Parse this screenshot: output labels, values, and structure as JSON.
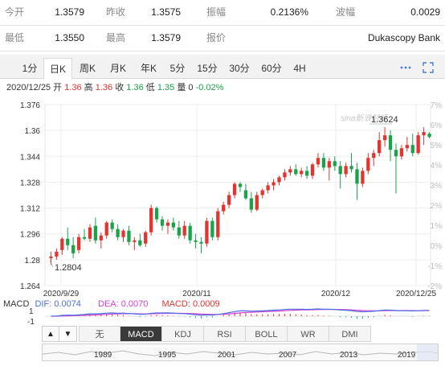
{
  "quote": {
    "row1": [
      {
        "label": "今开",
        "value": "1.3579"
      },
      {
        "label": "昨收",
        "value": "1.3575"
      },
      {
        "label": "振幅",
        "value": "0.2136%"
      },
      {
        "label": "波幅",
        "value": "0.0029"
      }
    ],
    "row2": [
      {
        "label": "最低",
        "value": "1.3550"
      },
      {
        "label": "最高",
        "value": "1.3579"
      },
      {
        "label": "报价",
        "value": "Dukascopy Bank"
      }
    ]
  },
  "tabs": [
    "1分",
    "日K",
    "周K",
    "月K",
    "年K",
    "5分",
    "15分",
    "30分",
    "60分",
    "4H"
  ],
  "active_tab": "日K",
  "ohlc": {
    "date": "2020/12/25",
    "open_label": "开",
    "open": "1.36",
    "high_label": "高",
    "high": "1.36",
    "close_label": "收",
    "close": "1.36",
    "low_label": "低",
    "low": "1.35",
    "volume_label": "量",
    "volume": "0",
    "change": "-0.02%"
  },
  "colors": {
    "up": "#e3342f",
    "down": "#1aa34a",
    "dif": "#4a6ee0",
    "dea": "#d63fd6",
    "accent": "#4c7bd2"
  },
  "icons": [
    "more-dots-icon",
    "fullscreen-icon"
  ],
  "chart_data": {
    "type": "candlestick",
    "y_ticks_left": [
      "1.376",
      "1.36",
      "1.344",
      "1.328",
      "1.312",
      "1.296",
      "1.28",
      "1.264"
    ],
    "y_ticks_right": [
      "7%",
      "6%",
      "5%",
      "4%",
      "3%",
      "2%",
      "1%",
      "0%",
      "-1%",
      "-2%"
    ],
    "x_ticks": [
      "2020/9/29",
      "2020/11",
      "2020/12",
      "2020/12/25"
    ],
    "ylim": [
      1.264,
      1.376
    ],
    "annotations": [
      {
        "text": "1.3624"
      },
      {
        "text": "1.2804"
      }
    ],
    "watermark": "sina新浪财经",
    "candles": [
      {
        "o": 1.281,
        "h": 1.285,
        "l": 1.277,
        "c": 1.282
      },
      {
        "o": 1.282,
        "h": 1.287,
        "l": 1.28,
        "c": 1.285
      },
      {
        "o": 1.286,
        "h": 1.294,
        "l": 1.283,
        "c": 1.293
      },
      {
        "o": 1.293,
        "h": 1.3,
        "l": 1.286,
        "c": 1.289
      },
      {
        "o": 1.289,
        "h": 1.294,
        "l": 1.281,
        "c": 1.284
      },
      {
        "o": 1.286,
        "h": 1.296,
        "l": 1.284,
        "c": 1.294
      },
      {
        "o": 1.294,
        "h": 1.299,
        "l": 1.292,
        "c": 1.293
      },
      {
        "o": 1.293,
        "h": 1.302,
        "l": 1.291,
        "c": 1.3
      },
      {
        "o": 1.301,
        "h": 1.306,
        "l": 1.29,
        "c": 1.292
      },
      {
        "o": 1.292,
        "h": 1.297,
        "l": 1.287,
        "c": 1.295
      },
      {
        "o": 1.295,
        "h": 1.304,
        "l": 1.293,
        "c": 1.303
      },
      {
        "o": 1.303,
        "h": 1.305,
        "l": 1.297,
        "c": 1.299
      },
      {
        "o": 1.299,
        "h": 1.302,
        "l": 1.292,
        "c": 1.294
      },
      {
        "o": 1.294,
        "h": 1.299,
        "l": 1.291,
        "c": 1.298
      },
      {
        "o": 1.298,
        "h": 1.301,
        "l": 1.289,
        "c": 1.291
      },
      {
        "o": 1.291,
        "h": 1.294,
        "l": 1.286,
        "c": 1.292
      },
      {
        "o": 1.292,
        "h": 1.296,
        "l": 1.288,
        "c": 1.289
      },
      {
        "o": 1.29,
        "h": 1.298,
        "l": 1.288,
        "c": 1.297
      },
      {
        "o": 1.297,
        "h": 1.314,
        "l": 1.295,
        "c": 1.312
      },
      {
        "o": 1.312,
        "h": 1.313,
        "l": 1.303,
        "c": 1.305
      },
      {
        "o": 1.305,
        "h": 1.307,
        "l": 1.298,
        "c": 1.301
      },
      {
        "o": 1.301,
        "h": 1.305,
        "l": 1.296,
        "c": 1.303
      },
      {
        "o": 1.303,
        "h": 1.306,
        "l": 1.298,
        "c": 1.3
      },
      {
        "o": 1.3,
        "h": 1.304,
        "l": 1.293,
        "c": 1.295
      },
      {
        "o": 1.295,
        "h": 1.304,
        "l": 1.293,
        "c": 1.301
      },
      {
        "o": 1.301,
        "h": 1.303,
        "l": 1.29,
        "c": 1.292
      },
      {
        "o": 1.292,
        "h": 1.296,
        "l": 1.287,
        "c": 1.291
      },
      {
        "o": 1.291,
        "h": 1.294,
        "l": 1.284,
        "c": 1.29
      },
      {
        "o": 1.29,
        "h": 1.306,
        "l": 1.288,
        "c": 1.304
      },
      {
        "o": 1.304,
        "h": 1.306,
        "l": 1.292,
        "c": 1.294
      },
      {
        "o": 1.294,
        "h": 1.312,
        "l": 1.292,
        "c": 1.31
      },
      {
        "o": 1.31,
        "h": 1.316,
        "l": 1.308,
        "c": 1.314
      },
      {
        "o": 1.314,
        "h": 1.322,
        "l": 1.312,
        "c": 1.32
      },
      {
        "o": 1.32,
        "h": 1.328,
        "l": 1.318,
        "c": 1.327
      },
      {
        "o": 1.327,
        "h": 1.328,
        "l": 1.322,
        "c": 1.325
      },
      {
        "o": 1.323,
        "h": 1.327,
        "l": 1.317,
        "c": 1.318
      },
      {
        "o": 1.318,
        "h": 1.322,
        "l": 1.309,
        "c": 1.311
      },
      {
        "o": 1.311,
        "h": 1.322,
        "l": 1.31,
        "c": 1.32
      },
      {
        "o": 1.32,
        "h": 1.324,
        "l": 1.318,
        "c": 1.323
      },
      {
        "o": 1.323,
        "h": 1.328,
        "l": 1.321,
        "c": 1.326
      },
      {
        "o": 1.326,
        "h": 1.33,
        "l": 1.323,
        "c": 1.328
      },
      {
        "o": 1.328,
        "h": 1.332,
        "l": 1.326,
        "c": 1.331
      },
      {
        "o": 1.331,
        "h": 1.336,
        "l": 1.329,
        "c": 1.334
      },
      {
        "o": 1.334,
        "h": 1.338,
        "l": 1.332,
        "c": 1.336
      },
      {
        "o": 1.336,
        "h": 1.339,
        "l": 1.332,
        "c": 1.333
      },
      {
        "o": 1.333,
        "h": 1.337,
        "l": 1.331,
        "c": 1.335
      },
      {
        "o": 1.335,
        "h": 1.338,
        "l": 1.33,
        "c": 1.332
      },
      {
        "o": 1.332,
        "h": 1.34,
        "l": 1.33,
        "c": 1.339
      },
      {
        "o": 1.339,
        "h": 1.346,
        "l": 1.337,
        "c": 1.343
      },
      {
        "o": 1.343,
        "h": 1.346,
        "l": 1.335,
        "c": 1.337
      },
      {
        "o": 1.337,
        "h": 1.343,
        "l": 1.329,
        "c": 1.341
      },
      {
        "o": 1.341,
        "h": 1.344,
        "l": 1.335,
        "c": 1.338
      },
      {
        "o": 1.338,
        "h": 1.341,
        "l": 1.324,
        "c": 1.333
      },
      {
        "o": 1.333,
        "h": 1.34,
        "l": 1.331,
        "c": 1.338
      },
      {
        "o": 1.338,
        "h": 1.346,
        "l": 1.334,
        "c": 1.336
      },
      {
        "o": 1.336,
        "h": 1.34,
        "l": 1.317,
        "c": 1.327
      },
      {
        "o": 1.327,
        "h": 1.337,
        "l": 1.325,
        "c": 1.335
      },
      {
        "o": 1.335,
        "h": 1.346,
        "l": 1.333,
        "c": 1.343
      },
      {
        "o": 1.343,
        "h": 1.348,
        "l": 1.338,
        "c": 1.346
      },
      {
        "o": 1.346,
        "h": 1.359,
        "l": 1.344,
        "c": 1.354
      },
      {
        "o": 1.354,
        "h": 1.362,
        "l": 1.35,
        "c": 1.357
      },
      {
        "o": 1.357,
        "h": 1.36,
        "l": 1.341,
        "c": 1.348
      },
      {
        "o": 1.348,
        "h": 1.352,
        "l": 1.321,
        "c": 1.344
      },
      {
        "o": 1.344,
        "h": 1.351,
        "l": 1.342,
        "c": 1.349
      },
      {
        "o": 1.349,
        "h": 1.356,
        "l": 1.347,
        "c": 1.351
      },
      {
        "o": 1.351,
        "h": 1.358,
        "l": 1.344,
        "c": 1.346
      },
      {
        "o": 1.346,
        "h": 1.359,
        "l": 1.345,
        "c": 1.357
      },
      {
        "o": 1.357,
        "h": 1.362,
        "l": 1.351,
        "c": 1.359
      },
      {
        "o": 1.358,
        "h": 1.359,
        "l": 1.355,
        "c": 1.356
      }
    ]
  },
  "macd": {
    "title": "MACD",
    "dif_label": "DIF: 0.0074",
    "dea_label": "DEA: 0.0070",
    "macd_label": "MACD: 0.0009",
    "y_ticks": [
      "1",
      "-1"
    ]
  },
  "indicator_tabs": [
    "无",
    "MACD",
    "KDJ",
    "RSI",
    "BOLL",
    "WR",
    "DMI"
  ],
  "active_indicator": "MACD",
  "arrows": {
    "up": "▲",
    "down": "▼"
  },
  "navigator_years": [
    "1989",
    "1995",
    "2001",
    "2007",
    "2013",
    "2019"
  ]
}
